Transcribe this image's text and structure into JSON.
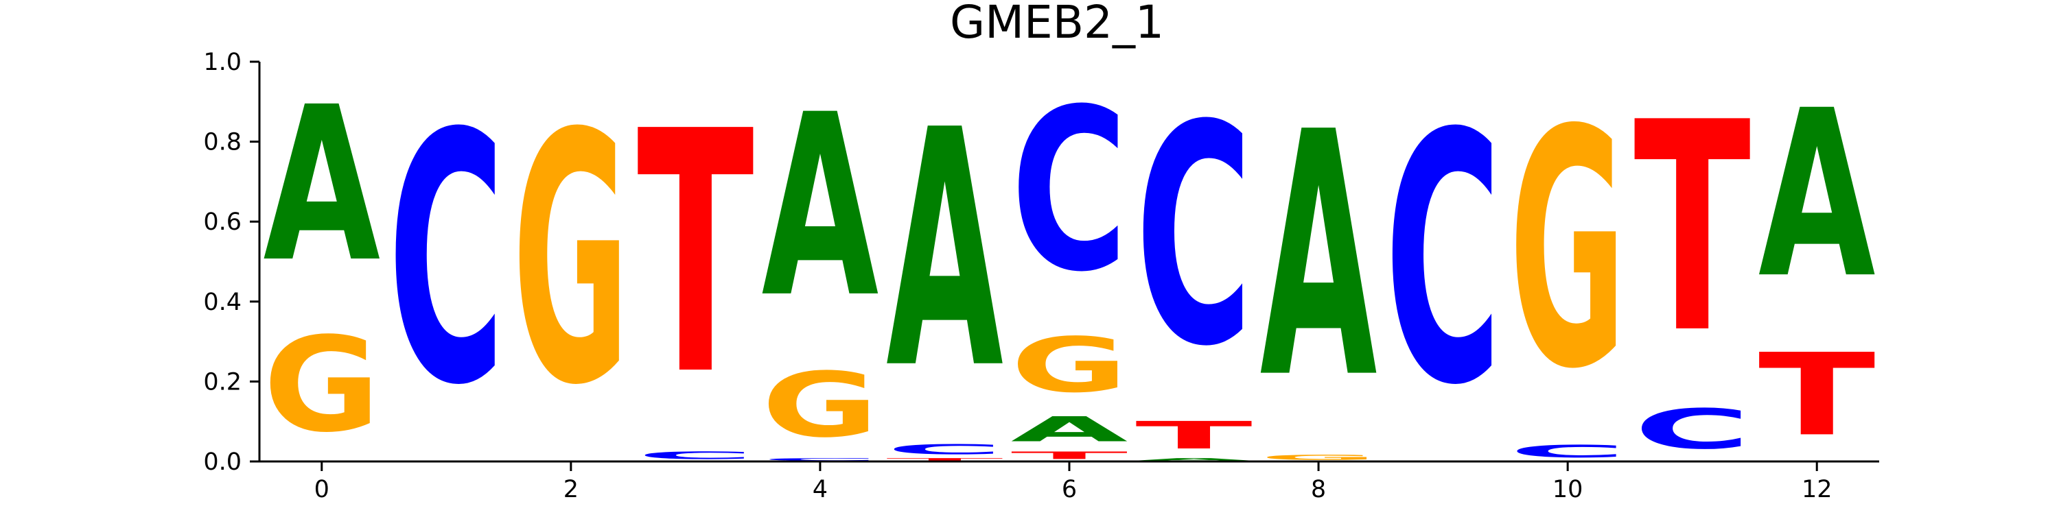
{
  "chart_data": {
    "type": "sequence_logo",
    "title": "GMEB2_1",
    "ylim": [
      0.0,
      1.0
    ],
    "xlim": [
      -0.5,
      12.5
    ],
    "y_ticks": [
      "0.0",
      "0.2",
      "0.4",
      "0.6",
      "0.8",
      "1.0"
    ],
    "x_ticks": [
      "0",
      "2",
      "4",
      "6",
      "8",
      "10",
      "12"
    ],
    "xlabel": "",
    "ylabel": "",
    "grid": false,
    "colors": {
      "A": "#008000",
      "C": "#0000ff",
      "G": "#ffa500",
      "T": "#ff0000"
    },
    "positions": [
      {
        "pos": 0,
        "stack": [
          {
            "letter": "G",
            "value": 0.38
          },
          {
            "letter": "A",
            "value": 0.62
          }
        ]
      },
      {
        "pos": 1,
        "stack": [
          {
            "letter": "C",
            "value": 1.0
          }
        ]
      },
      {
        "pos": 2,
        "stack": [
          {
            "letter": "G",
            "value": 1.0
          }
        ]
      },
      {
        "pos": 3,
        "stack": [
          {
            "letter": "C",
            "value": 0.03
          },
          {
            "letter": "T",
            "value": 0.97
          }
        ]
      },
      {
        "pos": 4,
        "stack": [
          {
            "letter": "C",
            "value": 0.01
          },
          {
            "letter": "G",
            "value": 0.26
          },
          {
            "letter": "A",
            "value": 0.73
          }
        ]
      },
      {
        "pos": 5,
        "stack": [
          {
            "letter": "T",
            "value": 0.01
          },
          {
            "letter": "C",
            "value": 0.04
          },
          {
            "letter": "A",
            "value": 0.95
          }
        ]
      },
      {
        "pos": 6,
        "stack": [
          {
            "letter": "T",
            "value": 0.03
          },
          {
            "letter": "A",
            "value": 0.1
          },
          {
            "letter": "G",
            "value": 0.22
          },
          {
            "letter": "C",
            "value": 0.65
          }
        ]
      },
      {
        "pos": 7,
        "stack": [
          {
            "letter": "A",
            "value": 0.01
          },
          {
            "letter": "T",
            "value": 0.11
          },
          {
            "letter": "C",
            "value": 0.88
          }
        ]
      },
      {
        "pos": 8,
        "stack": [
          {
            "letter": "G",
            "value": 0.02
          },
          {
            "letter": "A",
            "value": 0.98
          }
        ]
      },
      {
        "pos": 9,
        "stack": [
          {
            "letter": "C",
            "value": 1.0
          }
        ]
      },
      {
        "pos": 10,
        "stack": [
          {
            "letter": "C",
            "value": 0.05
          },
          {
            "letter": "G",
            "value": 0.95
          }
        ]
      },
      {
        "pos": 11,
        "stack": [
          {
            "letter": "C",
            "value": 0.16
          },
          {
            "letter": "T",
            "value": 0.84
          }
        ]
      },
      {
        "pos": 12,
        "stack": [
          {
            "letter": "T",
            "value": 0.33
          },
          {
            "letter": "A",
            "value": 0.67
          }
        ]
      }
    ]
  }
}
